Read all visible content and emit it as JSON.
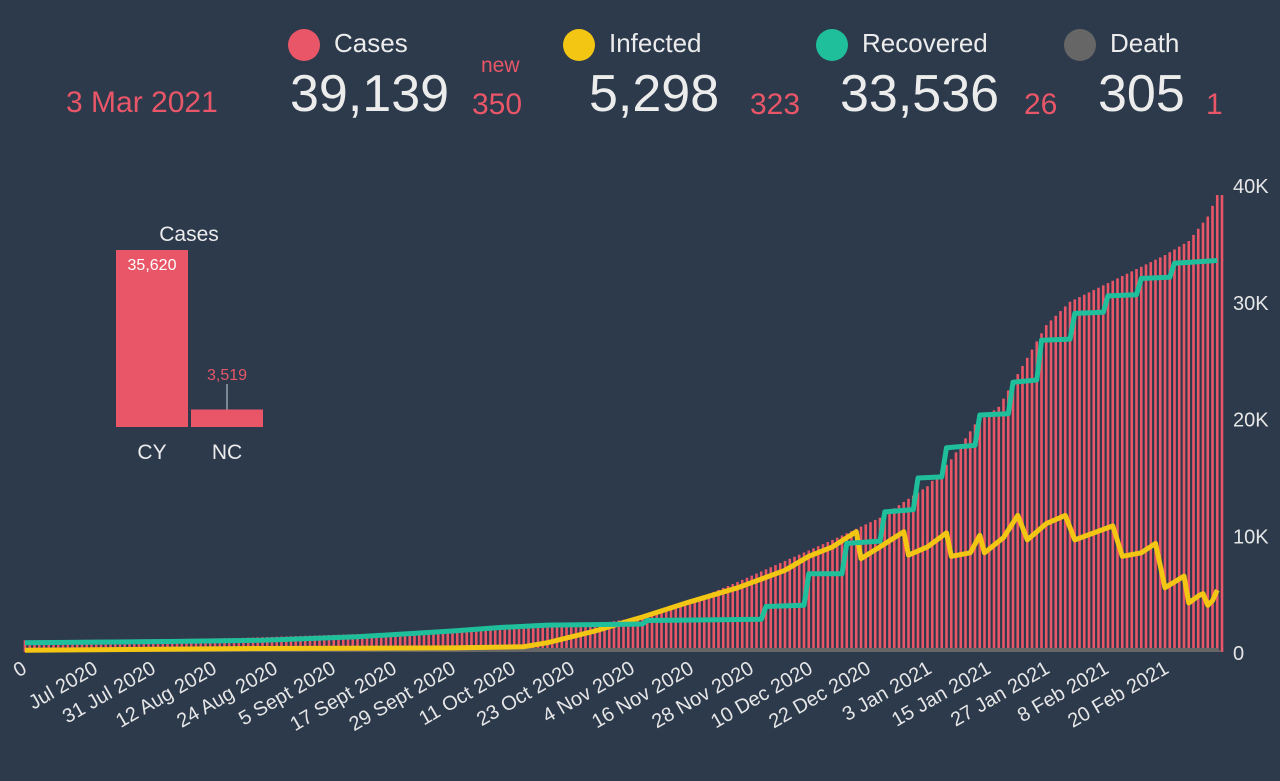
{
  "date": "3 Mar 2021",
  "stats": {
    "cases": {
      "label": "Cases",
      "value": "39,139",
      "new_label": "new",
      "new": "350",
      "color": "#e85668"
    },
    "infected": {
      "label": "Infected",
      "value": "5,298",
      "new": "323",
      "color": "#f3c613"
    },
    "recovered": {
      "label": "Recovered",
      "value": "33,536",
      "new": "26",
      "color": "#1fbf9c"
    },
    "death": {
      "label": "Death",
      "value": "305",
      "new": "1",
      "color": "#666666"
    }
  },
  "chart_data": [
    {
      "type": "bar",
      "title": "Cases",
      "categories": [
        "CY",
        "NC"
      ],
      "values": [
        35620,
        3519
      ],
      "value_labels": [
        "35,620",
        "3,519"
      ],
      "color": "#e85668"
    },
    {
      "type": "bar+line",
      "title": "",
      "x_tick_labels": [
        "0",
        "Jul 2020",
        "31 Jul 2020",
        "12 Aug 2020",
        "24 Aug 2020",
        "5 Sept 2020",
        "17 Sept 2020",
        "29 Sept 2020",
        "11 Oct 2020",
        "23 Oct 2020",
        "4 Nov 2020",
        "16 Nov 2020",
        "28 Nov 2020",
        "10 Dec 2020",
        "22 Dec 2020",
        "3 Jan 2021",
        "15 Jan 2021",
        "27 Jan 2021",
        "8 Feb 2021",
        "20 Feb 2021"
      ],
      "y_tick_labels": [
        "0",
        "10K",
        "20K",
        "30K",
        "40K"
      ],
      "ylim": [
        0,
        40000
      ],
      "x_days": 252,
      "series": [
        {
          "name": "Cases",
          "kind": "bars",
          "color": "#e85668",
          "points": [
            [
              0,
              1000
            ],
            [
              30,
              1100
            ],
            [
              45,
              1200
            ],
            [
              60,
              1400
            ],
            [
              75,
              1600
            ],
            [
              90,
              1800
            ],
            [
              105,
              2000
            ],
            [
              120,
              2400
            ],
            [
              130,
              3000
            ],
            [
              140,
              4300
            ],
            [
              150,
              6000
            ],
            [
              160,
              7800
            ],
            [
              170,
              9600
            ],
            [
              180,
              11500
            ],
            [
              190,
              14200
            ],
            [
              195,
              16500
            ],
            [
              200,
              19500
            ],
            [
              205,
              21000
            ],
            [
              210,
              24500
            ],
            [
              215,
              28000
            ],
            [
              220,
              30000
            ],
            [
              230,
              32000
            ],
            [
              240,
              34000
            ],
            [
              245,
              35200
            ],
            [
              249,
              37300
            ],
            [
              251,
              39139
            ]
          ]
        },
        {
          "name": "Infected",
          "kind": "line",
          "color": "#f3c613",
          "points": [
            [
              0,
              150
            ],
            [
              50,
              300
            ],
            [
              90,
              350
            ],
            [
              105,
              450
            ],
            [
              110,
              800
            ],
            [
              120,
              1800
            ],
            [
              130,
              3000
            ],
            [
              140,
              4300
            ],
            [
              150,
              5500
            ],
            [
              160,
              7000
            ],
            [
              165,
              8200
            ],
            [
              170,
              9000
            ],
            [
              175,
              10300
            ],
            [
              176,
              8000
            ],
            [
              180,
              9000
            ],
            [
              185,
              10300
            ],
            [
              186,
              8300
            ],
            [
              190,
              9000
            ],
            [
              194,
              10200
            ],
            [
              195,
              8200
            ],
            [
              199,
              8500
            ],
            [
              201,
              10000
            ],
            [
              202,
              8500
            ],
            [
              206,
              9800
            ],
            [
              209,
              11700
            ],
            [
              211,
              9600
            ],
            [
              215,
              11000
            ],
            [
              219,
              11700
            ],
            [
              221,
              9600
            ],
            [
              225,
              10200
            ],
            [
              229,
              10800
            ],
            [
              231,
              8200
            ],
            [
              235,
              8500
            ],
            [
              238,
              9300
            ],
            [
              240,
              5500
            ],
            [
              244,
              6500
            ],
            [
              245,
              4200
            ],
            [
              247,
              4800
            ],
            [
              248,
              5000
            ],
            [
              249,
              4000
            ],
            [
              250,
              4400
            ],
            [
              251,
              5298
            ]
          ]
        },
        {
          "name": "Recovered",
          "kind": "line",
          "color": "#1fbf9c",
          "points": [
            [
              0,
              800
            ],
            [
              30,
              900
            ],
            [
              50,
              1000
            ],
            [
              70,
              1300
            ],
            [
              90,
              1800
            ],
            [
              100,
              2100
            ],
            [
              110,
              2300
            ],
            [
              130,
              2400
            ],
            [
              131,
              2700
            ],
            [
              155,
              2800
            ],
            [
              156,
              3900
            ],
            [
              164,
              4000
            ],
            [
              165,
              6700
            ],
            [
              172,
              6700
            ],
            [
              173,
              9300
            ],
            [
              180,
              9500
            ],
            [
              181,
              12000
            ],
            [
              187,
              12200
            ],
            [
              188,
              14900
            ],
            [
              193,
              15000
            ],
            [
              194,
              17500
            ],
            [
              200,
              17700
            ],
            [
              201,
              20300
            ],
            [
              207,
              20400
            ],
            [
              208,
              23100
            ],
            [
              213,
              23300
            ],
            [
              214,
              26700
            ],
            [
              220,
              26800
            ],
            [
              221,
              29000
            ],
            [
              227,
              29100
            ],
            [
              228,
              30500
            ],
            [
              234,
              30600
            ],
            [
              235,
              32000
            ],
            [
              241,
              32100
            ],
            [
              242,
              33300
            ],
            [
              251,
              33536
            ]
          ]
        },
        {
          "name": "Death",
          "kind": "area",
          "color": "#666666",
          "points": [
            [
              0,
              20
            ],
            [
              100,
              40
            ],
            [
              150,
              100
            ],
            [
              200,
              200
            ],
            [
              251,
              305
            ]
          ]
        }
      ]
    }
  ]
}
